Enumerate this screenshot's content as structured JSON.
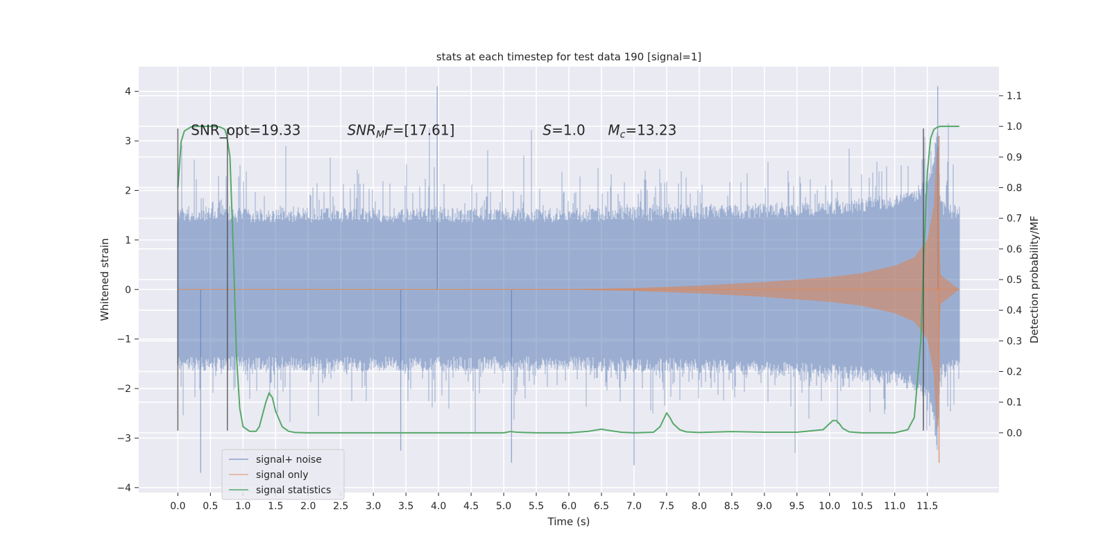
{
  "chart_data": {
    "type": "line",
    "title": "stats at each timestep for test data 190 [signal=1]",
    "xlabel": "Time (s)",
    "ylabel_left": "Whitened strain",
    "ylabel_right": "Detection probability/MF",
    "xlim": [
      -0.6,
      12.6
    ],
    "ylim_left": [
      -4.1,
      4.5
    ],
    "ylim_right": [
      -0.195,
      1.195
    ],
    "x_ticks": [
      0.0,
      0.5,
      1.0,
      1.5,
      2.0,
      2.5,
      3.0,
      3.5,
      4.0,
      4.5,
      5.0,
      5.5,
      6.0,
      6.5,
      7.0,
      7.5,
      8.0,
      8.5,
      9.0,
      9.5,
      10.0,
      10.5,
      11.0,
      11.5
    ],
    "x_tick_labels": [
      "0.0",
      "0.5",
      "1.0",
      "1.5",
      "2.0",
      "2.5",
      "3.0",
      "3.5",
      "4.0",
      "4.5",
      "5.0",
      "5.5",
      "6.0",
      "6.5",
      "7.0",
      "7.5",
      "8.0",
      "8.5",
      "9.0",
      "9.5",
      "10.0",
      "10.5",
      "11.0",
      "11.5"
    ],
    "y_left_ticks": [
      -4,
      -3,
      -2,
      -1,
      0,
      1,
      2,
      3,
      4
    ],
    "y_left_tick_labels": [
      "−4",
      "−3",
      "−2",
      "−1",
      "0",
      "1",
      "2",
      "3",
      "4"
    ],
    "y_right_ticks": [
      0.0,
      0.1,
      0.2,
      0.3,
      0.4,
      0.5,
      0.6,
      0.7,
      0.8,
      0.9,
      1.0,
      1.1
    ],
    "y_right_tick_labels": [
      "0.0",
      "0.1",
      "0.2",
      "0.3",
      "0.4",
      "0.5",
      "0.6",
      "0.7",
      "0.8",
      "0.9",
      "1.0",
      "1.1"
    ],
    "grid": true,
    "legend_position": "bottom-left",
    "series": [
      {
        "name": "signal+ noise",
        "axis": "left",
        "color": "#4c72b0",
        "x_range": [
          0.0,
          11.99
        ],
        "envelope_typical": [
          -1.9,
          2.1
        ],
        "peak_max": 4.1,
        "peak_min": -3.7
      },
      {
        "name": "signal only",
        "axis": "left",
        "color": "#dd8452",
        "x_range": [
          0.0,
          11.99
        ],
        "envelope": {
          "x": [
            0.0,
            6.0,
            7.0,
            8.0,
            9.0,
            10.0,
            10.5,
            11.0,
            11.3,
            11.5,
            11.6,
            11.65,
            11.7,
            11.99
          ],
          "amplitude": [
            0.0,
            0.005,
            0.03,
            0.08,
            0.15,
            0.25,
            0.33,
            0.48,
            0.65,
            1.0,
            1.7,
            3.0,
            0.3,
            0.0
          ]
        },
        "peak_max": 3.1,
        "peak_min": -3.5
      },
      {
        "name": "signal statistics",
        "axis": "right",
        "color": "#55a868",
        "x": [
          0.0,
          0.05,
          0.1,
          0.2,
          0.3,
          0.5,
          0.65,
          0.72,
          0.75,
          0.8,
          0.85,
          0.9,
          0.95,
          1.0,
          1.1,
          1.2,
          1.25,
          1.3,
          1.35,
          1.4,
          1.45,
          1.5,
          1.6,
          1.7,
          1.8,
          2.0,
          3.0,
          4.0,
          5.0,
          5.1,
          5.2,
          5.5,
          6.0,
          6.3,
          6.5,
          6.6,
          6.8,
          7.0,
          7.3,
          7.4,
          7.5,
          7.55,
          7.6,
          7.7,
          7.8,
          8.0,
          8.5,
          9.0,
          9.5,
          9.9,
          10.0,
          10.05,
          10.1,
          10.15,
          10.2,
          10.3,
          10.5,
          11.0,
          11.2,
          11.3,
          11.4,
          11.45,
          11.5,
          11.55,
          11.6,
          11.65,
          11.7,
          11.8,
          11.99
        ],
        "values": [
          0.8,
          0.95,
          0.985,
          0.998,
          1.0,
          1.0,
          0.998,
          0.99,
          0.97,
          0.9,
          0.6,
          0.25,
          0.08,
          0.02,
          0.005,
          0.005,
          0.02,
          0.06,
          0.1,
          0.13,
          0.115,
          0.07,
          0.02,
          0.005,
          0.001,
          0.0,
          0.0,
          0.0,
          0.0,
          0.004,
          0.002,
          0.0,
          0.0,
          0.005,
          0.012,
          0.008,
          0.002,
          0.0,
          0.002,
          0.02,
          0.065,
          0.05,
          0.03,
          0.01,
          0.003,
          0.001,
          0.004,
          0.002,
          0.002,
          0.01,
          0.03,
          0.04,
          0.04,
          0.03,
          0.015,
          0.003,
          0.0,
          0.0,
          0.01,
          0.05,
          0.3,
          0.6,
          0.85,
          0.96,
          0.99,
          0.997,
          1.0,
          1.0,
          1.0
        ]
      }
    ],
    "vertical_lines": [
      {
        "x": 0.0,
        "y_range": [
          -2.85,
          3.25
        ]
      },
      {
        "x": 0.76,
        "y_range": [
          -2.85,
          3.25
        ]
      },
      {
        "x": 11.44,
        "y_range": [
          -2.85,
          3.25
        ]
      }
    ],
    "annotations": [
      {
        "text": "SNR_opt=19.33",
        "x": 0.2,
        "y": 3.22
      },
      {
        "text_parts": [
          {
            "t": "SNR",
            "italic": true
          },
          {
            "t": "M",
            "italic": true,
            "sub": true
          },
          {
            "t": "F",
            "italic": true
          },
          {
            "t": "=[17.61]",
            "italic": false
          }
        ],
        "x": 2.6,
        "y": 3.22
      },
      {
        "text_parts": [
          {
            "t": "S",
            "italic": true
          },
          {
            "t": "=1.0",
            "italic": false
          }
        ],
        "x": 5.6,
        "y": 3.22
      },
      {
        "text_parts": [
          {
            "t": "M",
            "italic": true
          },
          {
            "t": "c",
            "italic": true,
            "sub": true
          },
          {
            "t": "=13.23",
            "italic": false
          }
        ],
        "x": 6.6,
        "y": 3.22
      }
    ]
  }
}
